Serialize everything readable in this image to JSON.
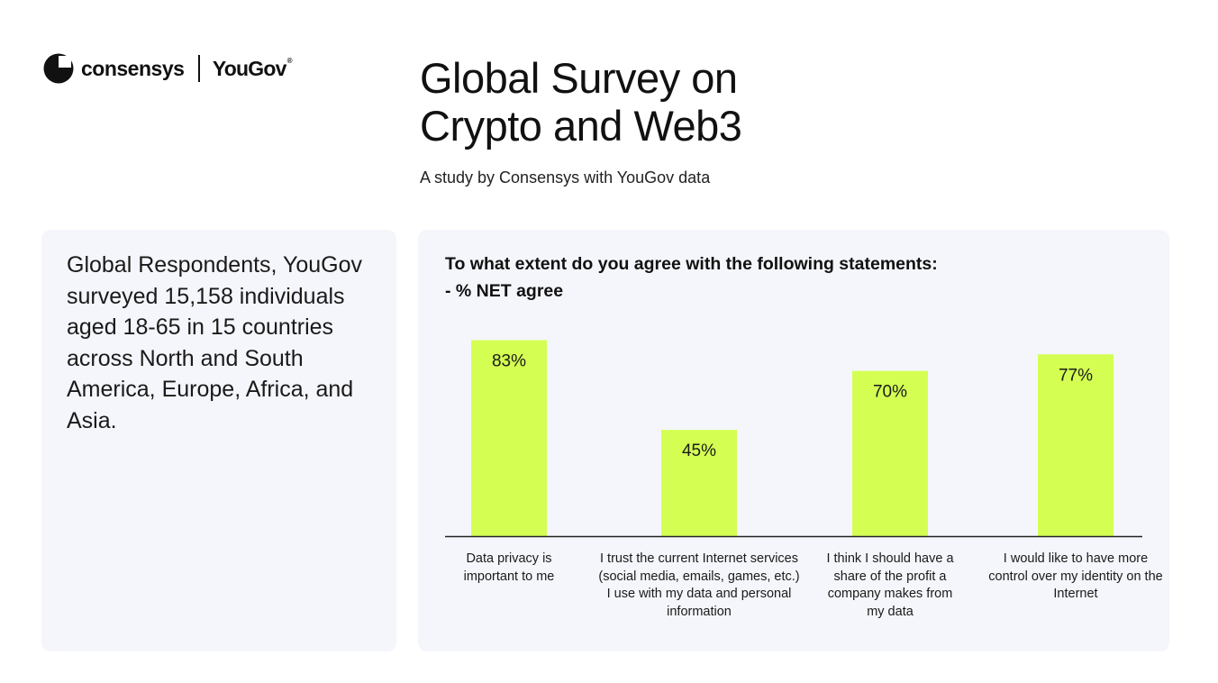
{
  "brand": {
    "consensys": "consensys",
    "yougov": "YouGov",
    "registered_mark": "®",
    "consensys_color": "#111111"
  },
  "header": {
    "title_line1": "Global Survey on",
    "title_line2": "Crypto and Web3",
    "subtitle": "A study by Consensys with YouGov data"
  },
  "left_panel": {
    "text": "Global Respondents, YouGov surveyed 15,158 individuals aged 18-65 in 15 countries across North and South America, Europe, Africa, and Asia."
  },
  "chart_data": {
    "type": "bar",
    "title_line1": "To what extent do you agree with the following statements:",
    "title_line2": "- % NET agree",
    "categories": [
      "Data privacy is important to me",
      "I trust the current Internet services (social media, emails, games, etc.) I use with my data and personal information",
      "I think I should have a share of the profit a company makes from my data",
      "I would like to have more control over my identity on the Internet"
    ],
    "values": [
      83,
      45,
      70,
      77
    ],
    "value_labels": [
      "83%",
      "45%",
      "70%",
      "77%"
    ],
    "ylim": [
      0,
      100
    ],
    "grid": false,
    "legend": "none",
    "bar_color": "#d4ff52",
    "axis_color": "#222222"
  }
}
